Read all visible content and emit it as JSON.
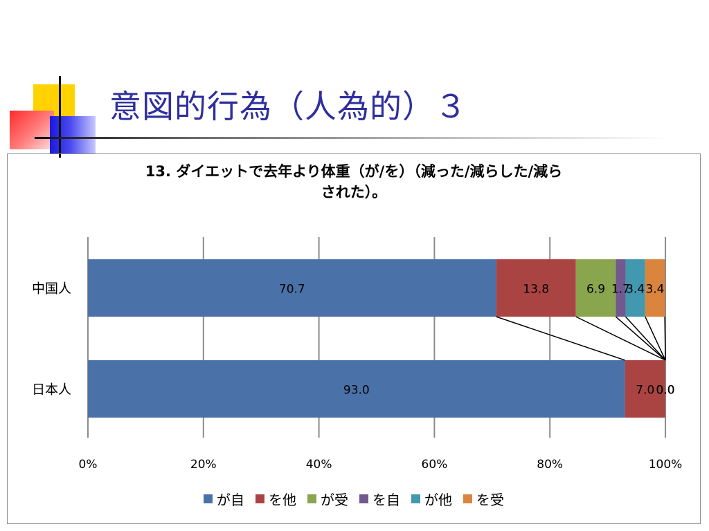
{
  "slide": {
    "title": "意図的行為（人為的）３"
  },
  "chart_data": {
    "type": "bar",
    "orientation": "horizontal",
    "stacked": "100%",
    "title_lines": [
      "13. ダイエットで去年より体重（が/を）（減った/減らした/減ら",
      "された）。"
    ],
    "categories": [
      "中国人",
      "日本人"
    ],
    "series": [
      {
        "name": "が自",
        "color": "#4a72a8",
        "values": [
          70.7,
          93.0
        ]
      },
      {
        "name": "を他",
        "color": "#aa4442",
        "values": [
          13.8,
          7.0
        ]
      },
      {
        "name": "が受",
        "color": "#89a54e",
        "values": [
          6.9,
          0.0
        ]
      },
      {
        "name": "を自",
        "color": "#71588f",
        "values": [
          1.7,
          0.0
        ]
      },
      {
        "name": "が他",
        "color": "#4198af",
        "values": [
          3.4,
          0.0
        ]
      },
      {
        "name": "を受",
        "color": "#db843d",
        "values": [
          3.4,
          0.0
        ]
      }
    ],
    "value_label_format": "one-decimal",
    "xlim": [
      0,
      100
    ],
    "x_ticks": [
      "0%",
      "20%",
      "40%",
      "60%",
      "80%",
      "100%"
    ],
    "grid": "vertical",
    "series_lines": true,
    "legend_position": "bottom"
  }
}
